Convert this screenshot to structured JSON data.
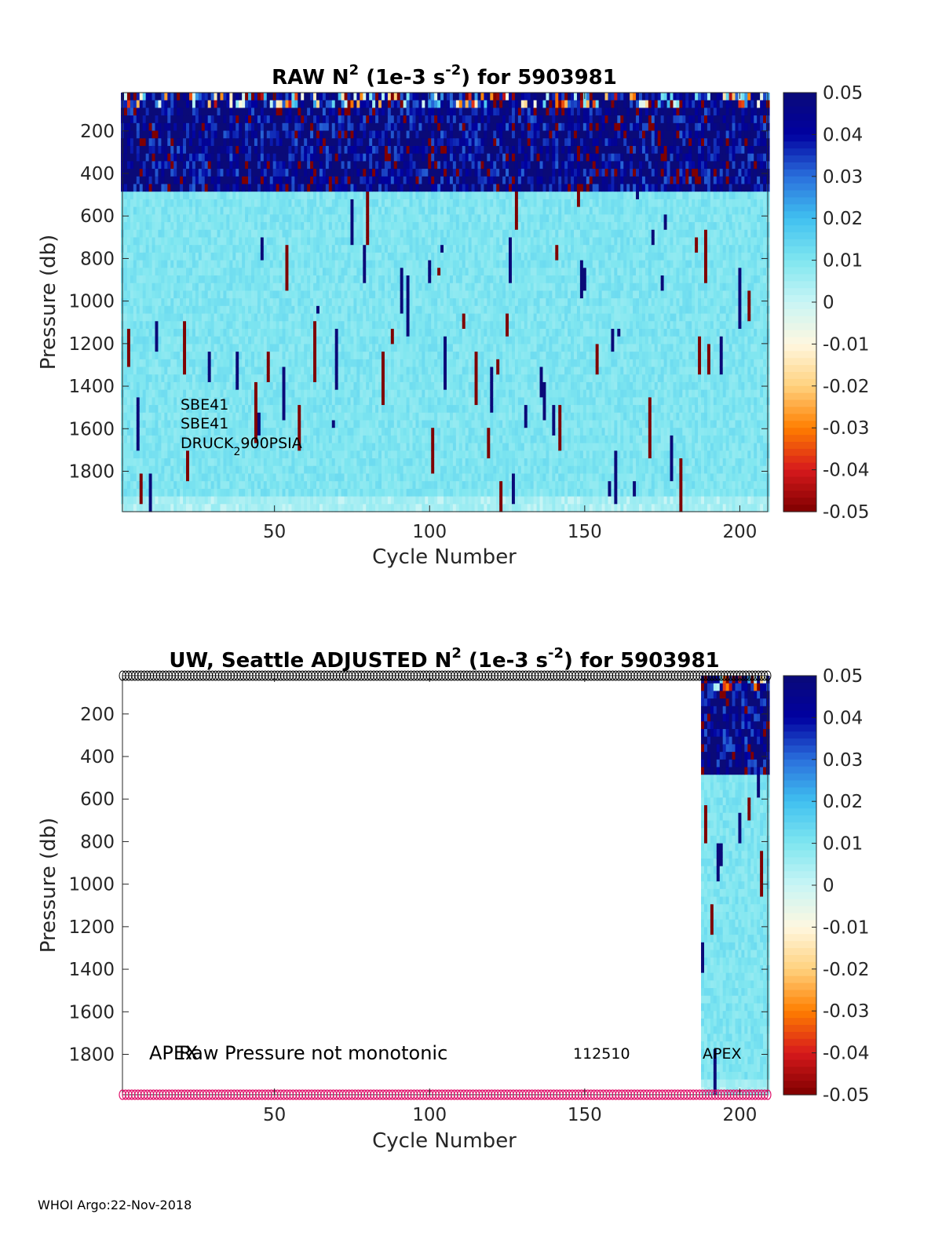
{
  "footer": "WHOI Argo:22-Nov-2018",
  "colormap": {
    "stops": [
      "#7f0000",
      "#d7191c",
      "#ff7f00",
      "#ffd27f",
      "#fff7e0",
      "#c8f5f5",
      "#7fe6f0",
      "#40c0f0",
      "#2a6fdc",
      "#0000a0",
      "#0a0a78"
    ],
    "dark_red": "#7f0000",
    "dark_blue": "#0a0a78",
    "light_cyan": "#bff0f0",
    "marker_black": "#000000",
    "marker_pink": "#e0106a"
  },
  "chart_data": [
    {
      "type": "heatmap",
      "title_prefix": "RAW N",
      "title_sup": "2",
      "title_mid": " (1e-3 s",
      "title_sup2": "-2",
      "title_suffix": ") for 5903981",
      "xlabel": "Cycle Number",
      "ylabel": "Pressure (db)",
      "xlim": [
        1,
        209
      ],
      "ylim": [
        1990,
        20
      ],
      "x_ticks": [
        "50",
        "100",
        "150",
        "200"
      ],
      "x_tick_values": [
        50,
        100,
        150,
        200
      ],
      "y_ticks": [
        "200",
        "400",
        "600",
        "800",
        "1000",
        "1200",
        "1400",
        "1600",
        "1800"
      ],
      "y_tick_values": [
        200,
        400,
        600,
        800,
        1000,
        1200,
        1400,
        1600,
        1800
      ],
      "clim": [
        -0.05,
        0.05
      ],
      "colorbar_ticks": [
        "0.05",
        "0.04",
        "0.03",
        "0.02",
        "0.01",
        "0",
        "-0.01",
        "-0.02",
        "-0.03",
        "-0.04",
        "-0.05"
      ],
      "colorbar_tick_values": [
        0.05,
        0.04,
        0.03,
        0.02,
        0.01,
        0,
        -0.01,
        -0.02,
        -0.03,
        -0.04,
        -0.05
      ],
      "cycles_with_data": [
        1,
        209
      ],
      "typical_values": {
        "upper_0_to_450db": 0.04,
        "450_to_1900db": 0.01,
        "deep": 0.005
      },
      "annotations": [
        "SBE41",
        "SBE41",
        "DRUCK",
        "2",
        "900PSIA"
      ]
    },
    {
      "type": "heatmap",
      "title_prefix": "UW, Seattle  ADJUSTED N",
      "title_sup": "2",
      "title_mid": " (1e-3 s",
      "title_sup2": "-2",
      "title_suffix": ") for 5903981",
      "xlabel": "Cycle Number",
      "ylabel": "Pressure (db)",
      "xlim": [
        1,
        209
      ],
      "ylim": [
        1990,
        20
      ],
      "x_ticks": [
        "50",
        "100",
        "150",
        "200"
      ],
      "x_tick_values": [
        50,
        100,
        150,
        200
      ],
      "y_ticks": [
        "200",
        "400",
        "600",
        "800",
        "1000",
        "1200",
        "1400",
        "1600",
        "1800"
      ],
      "y_tick_values": [
        200,
        400,
        600,
        800,
        1000,
        1200,
        1400,
        1600,
        1800
      ],
      "clim": [
        -0.05,
        0.05
      ],
      "colorbar_ticks": [
        "0.05",
        "0.04",
        "0.03",
        "0.02",
        "0.01",
        "0",
        "-0.01",
        "-0.02",
        "-0.03",
        "-0.04",
        "-0.05"
      ],
      "colorbar_tick_values": [
        0.05,
        0.04,
        0.03,
        0.02,
        0.01,
        0,
        -0.01,
        -0.02,
        -0.03,
        -0.04,
        -0.05
      ],
      "cycles_with_data": [
        188,
        209
      ],
      "marker_rows": {
        "top_pressure": 20,
        "bottom_pressure": 1990,
        "top_color": "black",
        "bottom_color": "pink"
      },
      "annotations": [
        "APEX",
        "Raw Pressure not monotonic",
        "112510",
        "APEX"
      ]
    }
  ]
}
